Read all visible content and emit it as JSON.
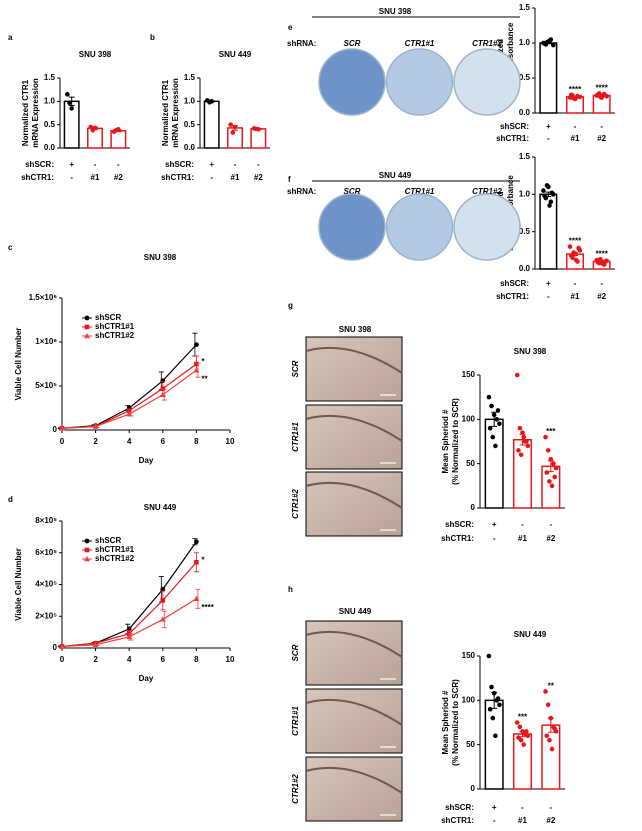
{
  "chart_data": [
    {
      "type": "bar",
      "panel": "a",
      "title": "SNU 398",
      "ylabel": [
        "Normalized CTR1",
        "mRNA Expression"
      ],
      "values": [
        1.0,
        0.42,
        0.37
      ],
      "errors": [
        0.09,
        0.03,
        0.02
      ],
      "colors": [
        "#000000",
        "#e8161b",
        "#e8161b"
      ],
      "points": [
        [
          1.15,
          0.97,
          0.85
        ],
        [
          0.45,
          0.38,
          0.43
        ],
        [
          0.35,
          0.38,
          0.4
        ]
      ],
      "ylim": [
        0,
        1.5
      ],
      "yticks": [
        {
          "value": 0,
          "label": "0.0"
        },
        0.5,
        {
          "value": 1,
          "label": "1.0"
        },
        1.5
      ],
      "groups": [
        {
          "name": "shSCR:",
          "labels": [
            "+",
            "-",
            "-"
          ]
        },
        {
          "name": "shCTR1:",
          "labels": [
            "-",
            "#1",
            "#2"
          ]
        }
      ]
    },
    {
      "type": "bar",
      "panel": "b",
      "title": "SNU 449",
      "ylabel": [
        "Normalized CTR1",
        "mRNA Expression"
      ],
      "values": [
        1.0,
        0.43,
        0.41
      ],
      "errors": [
        0.01,
        0.05,
        0.01
      ],
      "colors": [
        "#000000",
        "#e8161b",
        "#e8161b"
      ],
      "points": [
        [
          1.02,
          0.98,
          1.0
        ],
        [
          0.5,
          0.33,
          0.45
        ],
        [
          0.42,
          0.41,
          0.4
        ]
      ],
      "ylim": [
        0,
        1.5
      ],
      "yticks": [
        {
          "value": 0,
          "label": "0.0"
        },
        0.5,
        {
          "value": 1,
          "label": "1.0"
        },
        1.5
      ],
      "groups": [
        {
          "name": "shSCR:",
          "labels": [
            "+",
            "-",
            "-"
          ]
        },
        {
          "name": "shCTR1:",
          "labels": [
            "-",
            "#1",
            "#2"
          ]
        }
      ]
    },
    {
      "type": "line",
      "panel": "c",
      "title": "SNU 398",
      "xlabel": "Day",
      "ylabel": "Viable Cell Number",
      "x": [
        0,
        2,
        4,
        6,
        8
      ],
      "xlim": [
        0,
        10
      ],
      "xticks": [
        0,
        2,
        4,
        6,
        8,
        10
      ],
      "ylim": [
        0,
        1500000
      ],
      "yticks": [
        0,
        {
          "value": 500000,
          "label": "5×10⁵"
        },
        {
          "value": 1000000,
          "label": "1×10⁶"
        },
        {
          "value": 1500000,
          "label": "1.5×10⁶"
        }
      ],
      "series": [
        {
          "name": "shSCR",
          "color": "#000000",
          "values": [
            20000,
            50000,
            250000,
            560000,
            970000
          ],
          "errors": [
            5000,
            10000,
            30000,
            100000,
            130000
          ]
        },
        {
          "name": "shCTR1#1",
          "color": "#e8161b",
          "values": [
            20000,
            40000,
            220000,
            470000,
            750000
          ],
          "errors": [
            5000,
            10000,
            20000,
            80000,
            90000
          ],
          "annotation": "*"
        },
        {
          "name": "shCTR1#2",
          "color": "#f0413f",
          "values": [
            20000,
            40000,
            180000,
            400000,
            680000
          ],
          "errors": [
            5000,
            10000,
            20000,
            60000,
            80000
          ],
          "annotation": "**"
        }
      ]
    },
    {
      "type": "line",
      "panel": "d",
      "title": "SNU 449",
      "xlabel": "Day",
      "ylabel": "Viable Cell Number",
      "x": [
        0,
        2,
        4,
        6,
        8
      ],
      "xlim": [
        0,
        10
      ],
      "xticks": [
        0,
        2,
        4,
        6,
        8,
        10
      ],
      "ylim": [
        0,
        800000
      ],
      "yticks": [
        0,
        {
          "value": 200000,
          "label": "2×10⁵"
        },
        {
          "value": 400000,
          "label": "4×10⁵"
        },
        {
          "value": 600000,
          "label": "6×10⁵"
        },
        {
          "value": 800000,
          "label": "8×10⁵"
        }
      ],
      "series": [
        {
          "name": "shSCR",
          "color": "#000000",
          "values": [
            10000,
            30000,
            120000,
            370000,
            670000
          ],
          "errors": [
            3000,
            5000,
            30000,
            80000,
            20000
          ]
        },
        {
          "name": "shCTR1#1",
          "color": "#e8161b",
          "values": [
            10000,
            30000,
            90000,
            300000,
            540000
          ],
          "errors": [
            3000,
            5000,
            20000,
            60000,
            60000
          ],
          "annotation": "*"
        },
        {
          "name": "shCTR1#2",
          "color": "#f0413f",
          "values": [
            10000,
            20000,
            70000,
            180000,
            310000
          ],
          "errors": [
            3000,
            5000,
            20000,
            50000,
            60000
          ],
          "annotation": "****"
        }
      ]
    },
    {
      "type": "bar",
      "ylabel": [
        "Normalized",
        "590 nm Absorbance"
      ],
      "values": [
        1.0,
        0.23,
        0.25
      ],
      "errors": [
        0.01,
        0.01,
        0.01
      ],
      "colors": [
        "#000000",
        "#e8161b",
        "#e8161b"
      ],
      "points": [
        [
          1.0,
          0.98,
          1.02,
          1.05,
          0.97,
          0.99,
          1.01,
          1.03
        ],
        [
          0.22,
          0.25,
          0.2,
          0.24,
          0.23,
          0.26,
          0.21,
          0.22
        ],
        [
          0.25,
          0.28,
          0.22,
          0.27,
          0.24,
          0.26,
          0.23,
          0.25
        ]
      ],
      "annotations": [
        null,
        "****",
        "****"
      ],
      "ylim": [
        0,
        1.5
      ],
      "yticks": [
        {
          "value": 0,
          "label": "0.0"
        },
        0.5,
        {
          "value": 1,
          "label": "1.0"
        },
        1.5
      ],
      "groups": [
        {
          "name": "shSCR:",
          "labels": [
            "+",
            "-",
            "-"
          ]
        },
        {
          "name": "shCTR1:",
          "labels": [
            "-",
            "#1",
            "#2"
          ]
        }
      ]
    },
    {
      "type": "bar",
      "ylabel": [
        "Normalized",
        "590 nm Absorbance"
      ],
      "values": [
        1.0,
        0.2,
        0.1
      ],
      "errors": [
        0.03,
        0.02,
        0.01
      ],
      "colors": [
        "#000000",
        "#e8161b",
        "#e8161b"
      ],
      "points": [
        [
          1.05,
          0.95,
          1.1,
          0.9,
          1.0,
          0.98,
          1.12,
          0.85,
          1.02
        ],
        [
          0.3,
          0.15,
          0.2,
          0.1,
          0.25,
          0.18,
          0.22,
          0.12,
          0.28
        ],
        [
          0.12,
          0.08,
          0.1,
          0.06,
          0.11,
          0.09,
          0.13,
          0.07,
          0.1
        ]
      ],
      "annotations": [
        null,
        "****",
        "****"
      ],
      "ylim": [
        0,
        1.5
      ],
      "yticks": [
        {
          "value": 0,
          "label": "0.0"
        },
        0.5,
        {
          "value": 1,
          "label": "1.0"
        },
        1.5
      ],
      "groups": [
        {
          "name": "shSCR:",
          "labels": [
            "+",
            "-",
            "-"
          ]
        },
        {
          "name": "shCTR1:",
          "labels": [
            "-",
            "#1",
            "#2"
          ]
        }
      ]
    },
    {
      "type": "bar",
      "title": "SNU 398",
      "ylabel": [
        "Mean Spheriod #",
        "(% Normalized to SCR)"
      ],
      "values": [
        100,
        77,
        47
      ],
      "errors": [
        8,
        6,
        6
      ],
      "colors": [
        "#000000",
        "#e8161b",
        "#e8161b"
      ],
      "points": [
        [
          125,
          115,
          105,
          100,
          95,
          90,
          80,
          70,
          110
        ],
        [
          150,
          90,
          85,
          75,
          70,
          65,
          60,
          80,
          75
        ],
        [
          80,
          65,
          55,
          50,
          45,
          40,
          30,
          25,
          35
        ]
      ],
      "annotations": [
        null,
        null,
        "***"
      ],
      "ylim": [
        0,
        150
      ],
      "yticks": [
        0,
        50,
        100,
        150
      ],
      "groups": [
        {
          "name": "shSCR:",
          "labels": [
            "+",
            "-",
            "-"
          ]
        },
        {
          "name": "shCTR1:",
          "labels": [
            "-",
            "#1",
            "#2"
          ]
        }
      ]
    },
    {
      "type": "bar",
      "title": "SNU 449",
      "ylabel": [
        "Mean Spheriod #",
        "(% Normalized to SCR)"
      ],
      "values": [
        100,
        62,
        72
      ],
      "errors": [
        9,
        3,
        8
      ],
      "colors": [
        "#000000",
        "#e8161b",
        "#e8161b"
      ],
      "points": [
        [
          150,
          115,
          108,
          100,
          95,
          90,
          80,
          60,
          102
        ],
        [
          75,
          70,
          65,
          62,
          60,
          58,
          55,
          50,
          65
        ],
        [
          110,
          95,
          80,
          70,
          65,
          60,
          55,
          45,
          68
        ]
      ],
      "annotations": [
        null,
        "***",
        "**"
      ],
      "ylim": [
        0,
        150
      ],
      "yticks": [
        0,
        50,
        100,
        150
      ],
      "groups": [
        {
          "name": "shSCR:",
          "labels": [
            "+",
            "-",
            "-"
          ]
        },
        {
          "name": "shCTR1:",
          "labels": [
            "-",
            "#1",
            "#2"
          ]
        }
      ]
    }
  ],
  "image_sets": [
    {
      "panel": "e",
      "title": "SNU 398",
      "row_label": "shRNA:",
      "labels": [
        "SCR",
        "CTR1#1",
        "CTR1#2"
      ]
    },
    {
      "panel": "f",
      "title": "SNU 449",
      "row_label": "shRNA:",
      "labels": [
        "SCR",
        "CTR1#1",
        "CTR1#2"
      ]
    },
    {
      "panel": "g",
      "title": "SNU 398",
      "labels": [
        "SCR",
        "CTR1#1",
        "CTR1#2"
      ]
    },
    {
      "panel": "h",
      "title": "SNU 449",
      "labels": [
        "SCR",
        "CTR1#1",
        "CTR1#2"
      ]
    }
  ]
}
